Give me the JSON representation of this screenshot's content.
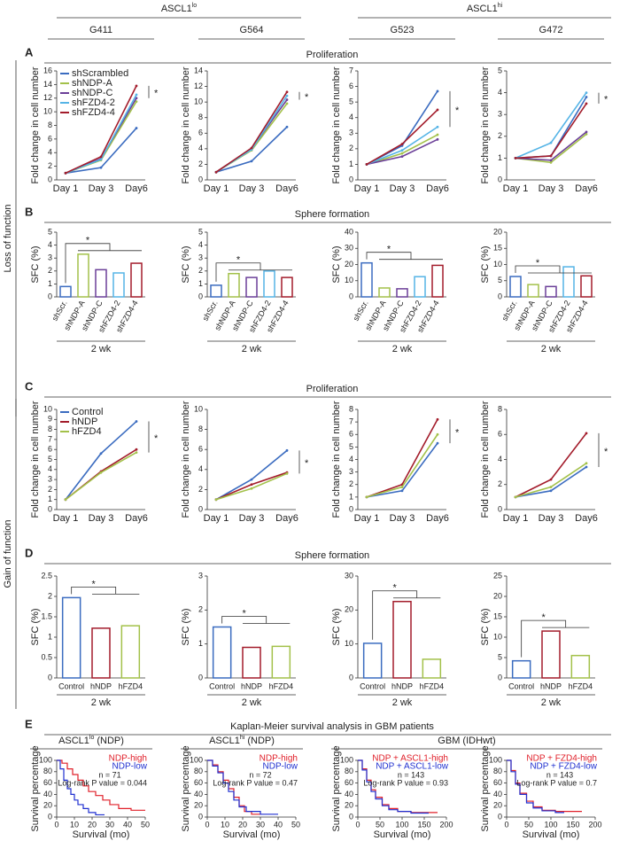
{
  "header": {
    "groups": [
      {
        "text": "ASCL1",
        "sup": "lo"
      },
      {
        "text": "ASCL1",
        "sup": "hi"
      }
    ],
    "columns": [
      "G411",
      "G564",
      "G523",
      "G472"
    ]
  },
  "side_labels": [
    "Loss of function",
    "Gain of function"
  ],
  "panels": [
    {
      "letter": "A",
      "title": "Proliferation"
    },
    {
      "letter": "B",
      "title": "Sphere formation"
    },
    {
      "letter": "C",
      "title": "Proliferation"
    },
    {
      "letter": "D",
      "title": "Sphere formation"
    },
    {
      "letter": "E",
      "title": "Kaplan-Meier survival analysis in GBM patients"
    }
  ],
  "chart_data": [
    {
      "type": "line",
      "ylabel": "Fold change in cell number",
      "categories": [
        "Day 1",
        "Day 3",
        "Day6"
      ],
      "ylim": [
        0,
        16
      ],
      "yticks": [
        0,
        2,
        4,
        6,
        8,
        10,
        12,
        14,
        16
      ],
      "legend": "upper left",
      "annotation": "*",
      "series": [
        {
          "name": "shScrambled",
          "color": "#3b6cc0",
          "values": [
            1,
            1.8,
            7.6
          ]
        },
        {
          "name": "shNDP-A",
          "color": "#a3c14a",
          "values": [
            1,
            2.9,
            11.5
          ]
        },
        {
          "name": "shNDP-C",
          "color": "#6b3f98",
          "values": [
            1,
            3.1,
            12
          ]
        },
        {
          "name": "shFZD4-2",
          "color": "#55b4e6",
          "values": [
            1,
            3,
            12.5
          ]
        },
        {
          "name": "shFZD4-4",
          "color": "#a31c2b",
          "values": [
            1,
            3.4,
            13.8
          ]
        }
      ]
    },
    {
      "type": "line",
      "ylabel": "Fold change in cell number",
      "categories": [
        "Day 1",
        "Day 3",
        "Day6"
      ],
      "ylim": [
        0,
        14
      ],
      "yticks": [
        0,
        2,
        4,
        6,
        8,
        10,
        12,
        14
      ],
      "annotation": "*",
      "series": [
        {
          "color": "#3b6cc0",
          "values": [
            1,
            2.4,
            6.8
          ]
        },
        {
          "color": "#a3c14a",
          "values": [
            1,
            3.8,
            9.8
          ]
        },
        {
          "color": "#6b3f98",
          "values": [
            1,
            4,
            10.3
          ]
        },
        {
          "color": "#55b4e6",
          "values": [
            1,
            3.9,
            10.8
          ]
        },
        {
          "color": "#a31c2b",
          "values": [
            1,
            4.1,
            11.3
          ]
        }
      ]
    },
    {
      "type": "line",
      "ylabel": "Fold change in cell number",
      "categories": [
        "Day 1",
        "Day 3",
        "Day6"
      ],
      "ylim": [
        0,
        7
      ],
      "yticks": [
        0,
        1,
        2,
        3,
        4,
        5,
        6,
        7
      ],
      "annotation": "*",
      "series": [
        {
          "color": "#3b6cc0",
          "values": [
            1,
            2.2,
            5.7
          ]
        },
        {
          "color": "#a3c14a",
          "values": [
            1,
            1.7,
            2.9
          ]
        },
        {
          "color": "#6b3f98",
          "values": [
            1,
            1.5,
            2.6
          ]
        },
        {
          "color": "#55b4e6",
          "values": [
            1,
            1.9,
            3.4
          ]
        },
        {
          "color": "#a31c2b",
          "values": [
            1,
            2.3,
            4.5
          ]
        }
      ]
    },
    {
      "type": "line",
      "ylabel": "Fold change in cell number",
      "categories": [
        "Day 1",
        "Day 3",
        "Day6"
      ],
      "ylim": [
        0,
        5
      ],
      "yticks": [
        0,
        1,
        2,
        3,
        4,
        5
      ],
      "annotation": "*",
      "series": [
        {
          "color": "#3b6cc0",
          "values": [
            1,
            1.1,
            3.8
          ]
        },
        {
          "color": "#a3c14a",
          "values": [
            1,
            0.8,
            2.1
          ]
        },
        {
          "color": "#6b3f98",
          "values": [
            1,
            0.9,
            2.2
          ]
        },
        {
          "color": "#55b4e6",
          "values": [
            1,
            1.7,
            4
          ]
        },
        {
          "color": "#a31c2b",
          "values": [
            1,
            1.1,
            3.5
          ]
        }
      ]
    },
    {
      "type": "bar",
      "ylabel": "SFC (%)",
      "group_label": "2 wk",
      "annotation": "*",
      "categories": [
        "shScr.",
        "shNDP-A",
        "shNDP-C",
        "shFZD4-2",
        "shFZD4-4"
      ],
      "colors": [
        "#3b6cc0",
        "#a3c14a",
        "#6b3f98",
        "#55b4e6",
        "#a31c2b"
      ],
      "values": [
        0.8,
        3.3,
        2.1,
        1.85,
        2.6
      ],
      "ylim": [
        0,
        5
      ],
      "yticks": [
        0,
        1,
        2,
        3,
        4,
        5
      ]
    },
    {
      "type": "bar",
      "ylabel": "SFC (%)",
      "group_label": "2 wk",
      "annotation": "*",
      "categories": [
        "shScr.",
        "shNDP-A",
        "shNDP-C",
        "shFZD4-2",
        "shFZD4-4"
      ],
      "colors": [
        "#3b6cc0",
        "#a3c14a",
        "#6b3f98",
        "#55b4e6",
        "#a31c2b"
      ],
      "values": [
        0.9,
        1.8,
        1.5,
        2,
        1.5
      ],
      "ylim": [
        0,
        5
      ],
      "yticks": [
        0,
        1,
        2,
        3,
        4,
        5
      ]
    },
    {
      "type": "bar",
      "ylabel": "SFC (%)",
      "group_label": "2 wk",
      "annotation": "*",
      "categories": [
        "shScr.",
        "shNDP-A",
        "shNDP-C",
        "shFZD4-2",
        "shFZD4-4"
      ],
      "colors": [
        "#3b6cc0",
        "#a3c14a",
        "#6b3f98",
        "#55b4e6",
        "#a31c2b"
      ],
      "values": [
        21,
        5.5,
        5,
        12.5,
        19.5
      ],
      "ylim": [
        0,
        40
      ],
      "yticks": [
        0,
        10,
        20,
        30,
        40
      ]
    },
    {
      "type": "bar",
      "ylabel": "SFC (%)",
      "group_label": "2 wk",
      "annotation": "*",
      "categories": [
        "shScr.",
        "shNDP-A",
        "shNDP-C",
        "shFZD4-2",
        "shFZD4-4"
      ],
      "colors": [
        "#3b6cc0",
        "#a3c14a",
        "#6b3f98",
        "#55b4e6",
        "#a31c2b"
      ],
      "values": [
        6.3,
        3.8,
        3.2,
        9.3,
        6.5
      ],
      "ylim": [
        0,
        20
      ],
      "yticks": [
        0,
        5,
        10,
        15,
        20
      ]
    },
    {
      "type": "line",
      "ylabel": "Fold change in cell number",
      "categories": [
        "Day 1",
        "Day 3",
        "Day6"
      ],
      "ylim": [
        0,
        10
      ],
      "yticks": [
        0,
        1,
        2,
        3,
        4,
        5,
        6,
        7,
        8,
        9,
        10
      ],
      "legend": "upper left",
      "annotation": "*",
      "series": [
        {
          "name": "Control",
          "color": "#3b6cc0",
          "values": [
            1,
            5.6,
            8.8
          ]
        },
        {
          "name": "hNDP",
          "color": "#a31c2b",
          "values": [
            1,
            3.8,
            6
          ]
        },
        {
          "name": "hFZD4",
          "color": "#a3c14a",
          "values": [
            1,
            3.7,
            5.7
          ]
        }
      ]
    },
    {
      "type": "line",
      "ylabel": "Fold change in cell number",
      "categories": [
        "Day 1",
        "Day 3",
        "Day6"
      ],
      "ylim": [
        0,
        10
      ],
      "yticks": [
        0,
        2,
        4,
        6,
        8,
        10
      ],
      "annotation": "*",
      "series": [
        {
          "color": "#3b6cc0",
          "values": [
            1,
            3,
            5.9
          ]
        },
        {
          "color": "#a31c2b",
          "values": [
            1,
            2.5,
            3.7
          ]
        },
        {
          "color": "#a3c14a",
          "values": [
            1,
            2.1,
            3.6
          ]
        }
      ]
    },
    {
      "type": "line",
      "ylabel": "Fold change in cell number",
      "categories": [
        "Day 1",
        "Day 3",
        "Day6"
      ],
      "ylim": [
        0,
        8
      ],
      "yticks": [
        0,
        1,
        2,
        3,
        4,
        5,
        6,
        7,
        8
      ],
      "annotation": "*",
      "series": [
        {
          "color": "#3b6cc0",
          "values": [
            1,
            1.5,
            5.3
          ]
        },
        {
          "color": "#a31c2b",
          "values": [
            1,
            2,
            7.2
          ]
        },
        {
          "color": "#a3c14a",
          "values": [
            1,
            1.8,
            6
          ]
        }
      ]
    },
    {
      "type": "line",
      "ylabel": "Fold change in cell number",
      "categories": [
        "Day 1",
        "Day 3",
        "Day6"
      ],
      "ylim": [
        0,
        8
      ],
      "yticks": [
        0,
        2,
        4,
        6,
        8
      ],
      "annotation": "*",
      "series": [
        {
          "color": "#3b6cc0",
          "values": [
            1,
            1.5,
            3.4
          ]
        },
        {
          "color": "#a31c2b",
          "values": [
            1,
            2.4,
            6.1
          ]
        },
        {
          "color": "#a3c14a",
          "values": [
            1,
            1.8,
            3.7
          ]
        }
      ]
    },
    {
      "type": "bar",
      "ylabel": "SFC (%)",
      "group_label": "2 wk",
      "annotation": "*",
      "categories": [
        "Control",
        "hNDP",
        "hFZD4"
      ],
      "colors": [
        "#3b6cc0",
        "#a31c2b",
        "#a3c14a"
      ],
      "values": [
        1.97,
        1.22,
        1.28
      ],
      "ylim": [
        0,
        2.5
      ],
      "yticks": [
        0,
        0.5,
        1,
        1.5,
        2,
        2.5
      ]
    },
    {
      "type": "bar",
      "ylabel": "SFC (%)",
      "group_label": "2 wk",
      "annotation": "*",
      "categories": [
        "Control",
        "hNDP",
        "hFZD4"
      ],
      "colors": [
        "#3b6cc0",
        "#a31c2b",
        "#a3c14a"
      ],
      "values": [
        1.5,
        0.9,
        0.93
      ],
      "ylim": [
        0,
        3
      ],
      "yticks": [
        0,
        1,
        2,
        3
      ]
    },
    {
      "type": "bar",
      "ylabel": "SFC (%)",
      "group_label": "2 wk",
      "annotation": "*",
      "categories": [
        "Control",
        "hNDP",
        "hFZD4"
      ],
      "colors": [
        "#3b6cc0",
        "#a31c2b",
        "#a3c14a"
      ],
      "values": [
        10.2,
        22.5,
        5.5
      ],
      "ylim": [
        0,
        30
      ],
      "yticks": [
        0,
        10,
        20,
        30
      ]
    },
    {
      "type": "bar",
      "ylabel": "SFC (%)",
      "group_label": "2 wk",
      "annotation": "*",
      "categories": [
        "Control",
        "hNDP",
        "hFZD4"
      ],
      "colors": [
        "#3b6cc0",
        "#a31c2b",
        "#a3c14a"
      ],
      "values": [
        4.2,
        11.5,
        5.5
      ],
      "ylim": [
        0,
        25
      ],
      "yticks": [
        0,
        5,
        10,
        15,
        20,
        25
      ]
    },
    {
      "type": "km",
      "title": "ASCL1",
      "title_sup": "lo",
      "title_suffix": "(NDP)",
      "ylabel": "Survival percentage",
      "xlabel": "Survival (mo)",
      "xlim": [
        0,
        50
      ],
      "xticks": [
        0,
        10,
        20,
        30,
        40,
        50
      ],
      "ylim": [
        0,
        100
      ],
      "yticks": [
        0,
        20,
        40,
        60,
        80,
        100
      ],
      "annotations": [
        "n = 71",
        "Log-rank P value = 0.044"
      ],
      "series": [
        {
          "name": "NDP-high",
          "color": "#e0202a",
          "x": [
            0,
            3,
            6,
            9,
            12,
            15,
            18,
            22,
            26,
            30,
            35,
            42,
            50
          ],
          "values": [
            100,
            95,
            85,
            75,
            65,
            55,
            45,
            38,
            30,
            22,
            15,
            12,
            12
          ]
        },
        {
          "name": "NDP-low",
          "color": "#2030d0",
          "x": [
            0,
            2,
            4,
            6,
            8,
            10,
            12,
            15,
            18,
            22,
            27
          ],
          "values": [
            100,
            85,
            65,
            50,
            40,
            30,
            22,
            15,
            8,
            4,
            4
          ]
        }
      ]
    },
    {
      "type": "km",
      "title": "ASCL1",
      "title_sup": "hi",
      "title_suffix": "(NDP)",
      "ylabel": "Survival percentage",
      "xlabel": "Survival (mo)",
      "xlim": [
        0,
        50
      ],
      "xticks": [
        0,
        10,
        20,
        30,
        40,
        50
      ],
      "ylim": [
        0,
        100
      ],
      "yticks": [
        0,
        20,
        40,
        60,
        80,
        100
      ],
      "annotations": [
        "n = 72",
        "Log-rank P value = 0.47"
      ],
      "series": [
        {
          "name": "NDP-high",
          "color": "#e0202a",
          "x": [
            0,
            3,
            6,
            9,
            12,
            15,
            18,
            21,
            25,
            30
          ],
          "values": [
            100,
            92,
            80,
            65,
            50,
            35,
            20,
            10,
            5,
            5
          ]
        },
        {
          "name": "NDP-low",
          "color": "#2030d0",
          "x": [
            0,
            3,
            6,
            9,
            12,
            15,
            18,
            22,
            30,
            40
          ],
          "values": [
            100,
            90,
            78,
            60,
            45,
            30,
            18,
            10,
            5,
            5
          ]
        }
      ]
    },
    {
      "type": "km",
      "title": "GBM (IDHwt)",
      "ylabel": "Survival percentage",
      "xlabel": "Survival (mo)",
      "xlim": [
        0,
        200
      ],
      "xticks": [
        0,
        50,
        100,
        150,
        200
      ],
      "ylim": [
        0,
        100
      ],
      "yticks": [
        0,
        20,
        40,
        60,
        80,
        100
      ],
      "annotations": [
        "n = 143",
        "Log-rank P value = 0.93"
      ],
      "series": [
        {
          "name": "NDP + ASCL1-high",
          "color": "#e0202a",
          "x": [
            0,
            10,
            20,
            30,
            40,
            55,
            70,
            90,
            120,
            180
          ],
          "values": [
            100,
            85,
            65,
            48,
            35,
            22,
            15,
            10,
            8,
            8
          ]
        },
        {
          "name": "NDP + ASCL1-low",
          "color": "#2030d0",
          "x": [
            0,
            10,
            20,
            30,
            40,
            55,
            70,
            90,
            120,
            160
          ],
          "values": [
            100,
            83,
            62,
            45,
            32,
            20,
            13,
            10,
            7,
            7
          ]
        }
      ]
    },
    {
      "type": "km",
      "ylabel": "Survival percentage",
      "xlabel": "Survival (mo)",
      "xlim": [
        0,
        200
      ],
      "xticks": [
        0,
        50,
        100,
        150,
        200
      ],
      "ylim": [
        0,
        100
      ],
      "yticks": [
        0,
        20,
        40,
        60,
        80,
        100
      ],
      "annotations": [
        "n = 143",
        "Log-rank P value = 0.7"
      ],
      "series": [
        {
          "name": "NDP + FZD4-high",
          "color": "#e0202a",
          "x": [
            0,
            10,
            20,
            30,
            45,
            60,
            80,
            110,
            170
          ],
          "values": [
            100,
            82,
            60,
            42,
            28,
            18,
            12,
            10,
            10
          ]
        },
        {
          "name": "NDP + FZD4-low",
          "color": "#2030d0",
          "x": [
            0,
            10,
            20,
            30,
            45,
            60,
            80,
            110,
            130
          ],
          "values": [
            100,
            80,
            58,
            40,
            25,
            16,
            11,
            8,
            8
          ]
        }
      ]
    }
  ]
}
